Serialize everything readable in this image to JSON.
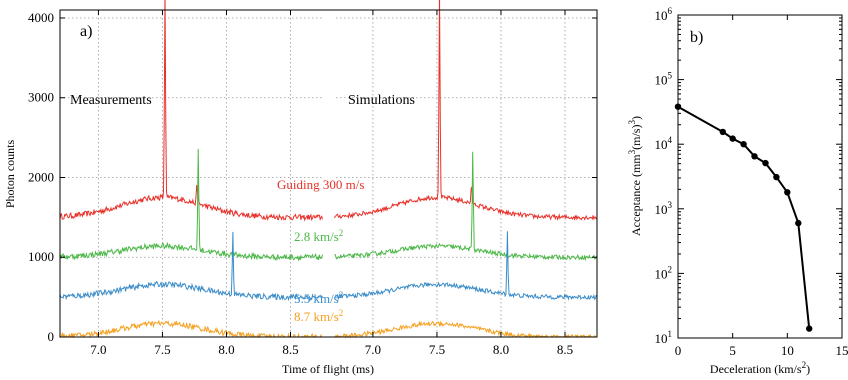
{
  "chart_data": [
    {
      "panel_label": "a)",
      "type": "line",
      "xlabel": "Time of flight (ms)",
      "ylabel": "Photon counts",
      "ylim": [
        0,
        4100
      ],
      "yticks": [
        0,
        1000,
        2000,
        3000,
        4000
      ],
      "grid": true,
      "subpanels": [
        {
          "title": "Measurements",
          "xlim": [
            6.7,
            8.75
          ],
          "xticks": [
            7.0,
            7.5,
            8.0,
            8.5
          ]
        },
        {
          "title": "Simulations",
          "xlim": [
            6.7,
            8.75
          ],
          "xticks": [
            7.0,
            7.5,
            8.0,
            8.5
          ]
        }
      ],
      "series": [
        {
          "name": "Guiding 300 m/s",
          "label_main": "Guiding 300 m/s",
          "label_sup": "",
          "color": "#e8312a",
          "offset": 1500,
          "bump": 250,
          "peaks": [
            {
              "x": 7.52,
              "height": 2600
            },
            {
              "x": 7.77,
              "height": 250
            }
          ]
        },
        {
          "name": "2.8 km/s2",
          "label_main": "2.8 km/s",
          "label_sup": "2",
          "color": "#4cb848",
          "offset": 1000,
          "bump": 140,
          "peaks": [
            {
              "x": 7.78,
              "height": 1250
            }
          ]
        },
        {
          "name": "5.5 km/s2",
          "label_main": "5.5 km/s",
          "label_sup": "2",
          "color": "#3a8cc8",
          "offset": 500,
          "bump": 160,
          "peaks": [
            {
              "x": 8.05,
              "height": 800
            }
          ]
        },
        {
          "name": "8.7 km/s2",
          "label_main": "8.7 km/s",
          "label_sup": "2",
          "color": "#f5a020",
          "offset": 0,
          "bump": 170,
          "peaks": []
        }
      ]
    },
    {
      "panel_label": "b)",
      "type": "line",
      "xlabel": "Deceleration (km/s2)",
      "xlabel_main": "Deceleration (km/s",
      "xlabel_sup": "2",
      "xlabel_end": ")",
      "ylabel": "Acceptance (mm3(m/s)3)",
      "ylabel_parts": [
        "Acceptance (mm",
        "3",
        "(m/s)",
        "3",
        ")"
      ],
      "yscale": "log",
      "xlim": [
        0,
        15
      ],
      "xticks": [
        0,
        5,
        10,
        15
      ],
      "ylim": [
        10,
        1000000
      ],
      "ytick_exponents": [
        1,
        2,
        3,
        4,
        5,
        6
      ],
      "grid": false,
      "x": [
        0,
        4.1,
        5.0,
        6.0,
        7.0,
        8.0,
        9.0,
        10.0,
        11.0,
        12.0
      ],
      "y": [
        38000,
        15500,
        12200,
        10000,
        6500,
        5100,
        3100,
        1800,
        600,
        14
      ]
    }
  ]
}
